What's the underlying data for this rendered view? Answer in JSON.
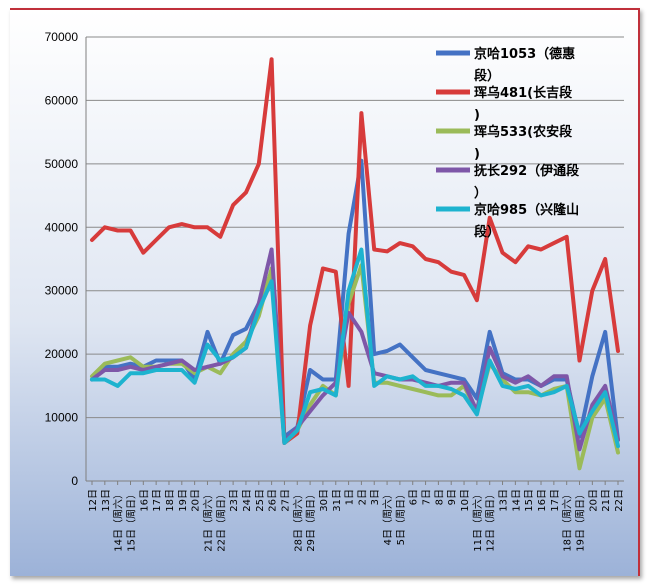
{
  "chart_data": {
    "type": "line",
    "title": "",
    "xlabel": "",
    "ylabel": "",
    "ylim": [
      0,
      70000
    ],
    "yticks": [
      "0",
      "10000",
      "20000",
      "30000",
      "40000",
      "50000",
      "60000",
      "70000"
    ],
    "grid": true,
    "legend_position": "top-right",
    "categories": [
      "12日",
      "13日",
      "14日（周六）",
      "15日（周日）",
      "16日",
      "17日",
      "18日",
      "19日",
      "20日",
      "21日（周六）",
      "22日（周日）",
      "23日",
      "24日",
      "25日",
      "26日",
      "27日",
      "28日（周六）",
      "29日（周日）",
      "30日",
      "31日",
      "1日",
      "2日",
      "3日",
      "4日（周六）",
      "5日（周日）",
      "6日",
      "7日",
      "8日",
      "9日",
      "10日",
      "11日（周六）",
      "12日（周日）",
      "13日",
      "14日",
      "15日",
      "16日",
      "17日",
      "18日（周六）",
      "19日（周日）",
      "20日",
      "21日",
      "22日"
    ],
    "series": [
      {
        "name": "京哈1053（德惠段）",
        "color": "#4472c4",
        "values": [
          16000,
          18000,
          18000,
          18500,
          18000,
          19000,
          19000,
          19000,
          16000,
          23500,
          18500,
          23000,
          24000,
          28000,
          33000,
          7000,
          8500,
          17500,
          16000,
          16000,
          39000,
          50500,
          20000,
          20500,
          21500,
          19500,
          17500,
          17000,
          16500,
          16000,
          13000,
          23500,
          17000,
          16000,
          16000,
          15000,
          16000,
          16000,
          7000,
          16500,
          23500,
          6500
        ]
      },
      {
        "name": "珲乌481(长吉段)",
        "color": "#d73b3b",
        "values": [
          38000,
          40000,
          39500,
          39500,
          36000,
          38000,
          40000,
          40500,
          40000,
          40000,
          38500,
          43500,
          45500,
          50000,
          66500,
          6000,
          7500,
          24500,
          33500,
          33000,
          15000,
          58000,
          36500,
          36200,
          37500,
          37000,
          35000,
          34500,
          33000,
          32500,
          28500,
          41500,
          36000,
          34500,
          37000,
          36500,
          37500,
          38500,
          19000,
          30000,
          35000,
          20500
        ]
      },
      {
        "name": "珲乌533(农安段)",
        "color": "#9bbb59",
        "values": [
          16500,
          18500,
          19000,
          19500,
          18000,
          18000,
          18500,
          18500,
          17000,
          18000,
          17000,
          20000,
          22000,
          26000,
          33500,
          6000,
          8000,
          12000,
          15000,
          13500,
          28000,
          34000,
          15500,
          15500,
          15000,
          14500,
          14000,
          13500,
          13500,
          15000,
          11000,
          18500,
          16000,
          14000,
          14000,
          13500,
          14500,
          15000,
          2000,
          10000,
          13000,
          4500
        ]
      },
      {
        "name": "抚长292（伊通段）",
        "color": "#7e57a8",
        "values": [
          16000,
          17500,
          17500,
          18000,
          17500,
          18000,
          18500,
          19000,
          17500,
          18000,
          18500,
          19500,
          21000,
          28000,
          36500,
          6000,
          8500,
          11000,
          13500,
          15500,
          26500,
          23500,
          17000,
          16500,
          16000,
          16000,
          15500,
          15000,
          15500,
          15500,
          11000,
          21000,
          16500,
          15500,
          16500,
          15000,
          16500,
          16500,
          5000,
          12000,
          15000,
          6500
        ]
      },
      {
        "name": "京哈985（兴隆山段）",
        "color": "#1db3cf",
        "values": [
          16000,
          16000,
          15000,
          17000,
          17000,
          17500,
          17500,
          17500,
          15500,
          21500,
          19000,
          19500,
          21000,
          27000,
          31500,
          6000,
          8000,
          14000,
          14500,
          13500,
          30000,
          36500,
          15000,
          16500,
          16000,
          16500,
          15000,
          15000,
          14500,
          13500,
          10500,
          19000,
          15000,
          14500,
          15000,
          13500,
          14000,
          15000,
          7500,
          11000,
          14000,
          5500
        ]
      }
    ]
  }
}
